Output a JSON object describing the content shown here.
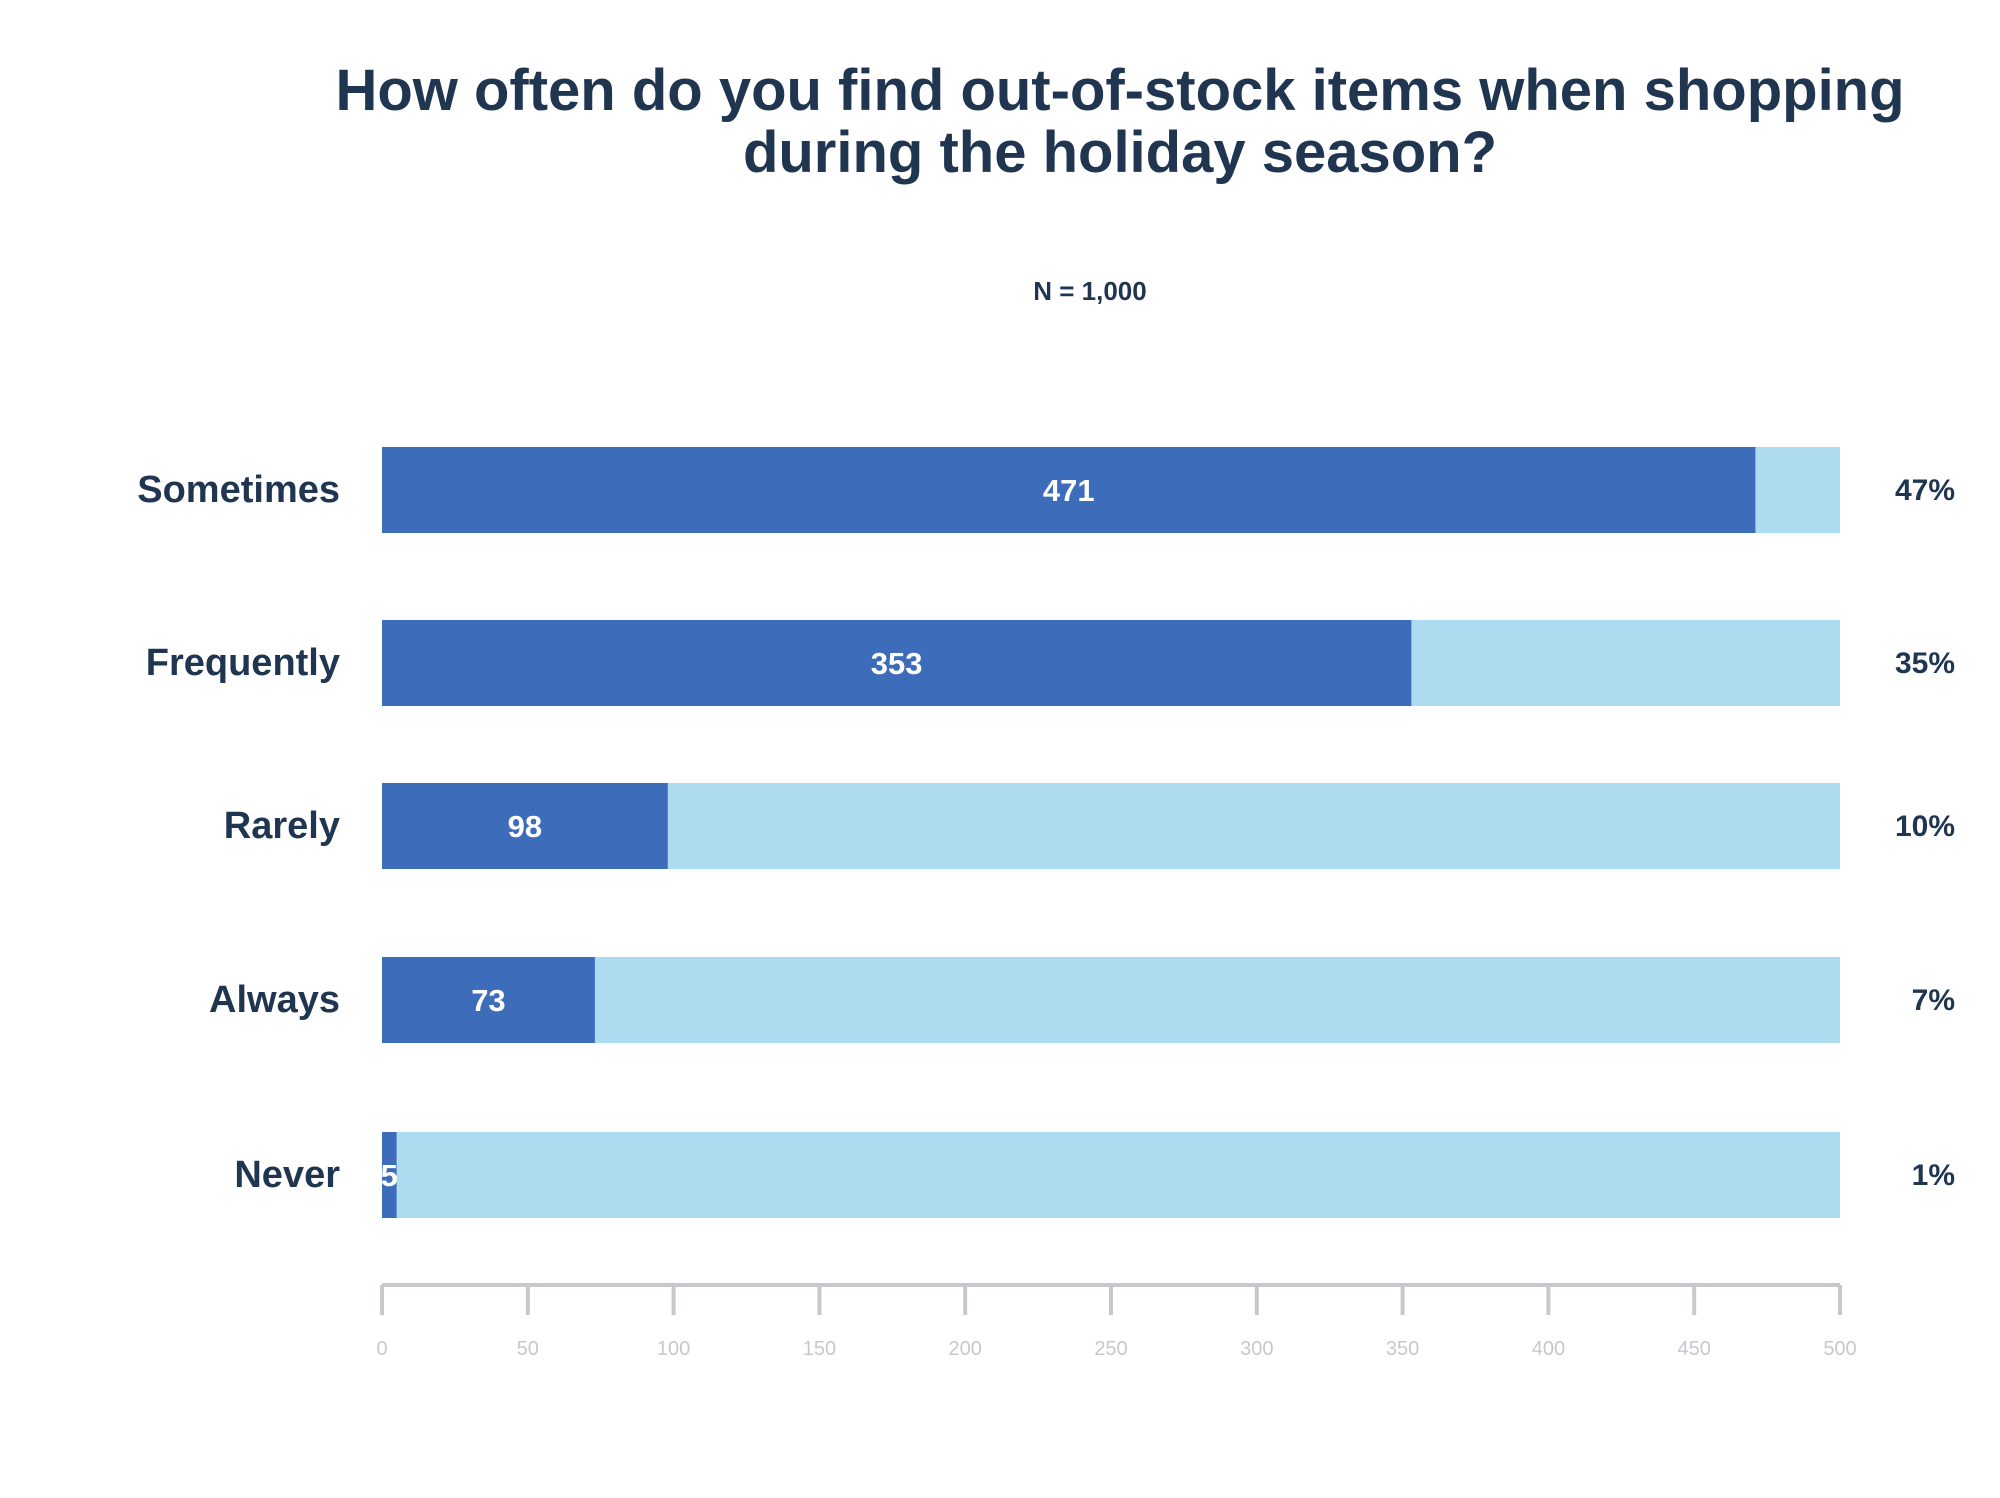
{
  "title_line_1": "How often do you find out-of-stock items when shopping",
  "title_line_2": "during the holiday season?",
  "subtitle": "N = 1,000",
  "colors": {
    "value_bar": "#3d6cba",
    "background_bar": "#addcf0",
    "text_dark": "#1f3550",
    "axis": "#c5c9ce",
    "tick_label": "#c5c9ce",
    "data_label": "#ffffff"
  },
  "chart_data": {
    "type": "bar",
    "orientation": "horizontal",
    "title": "How often do you find out-of-stock items when shopping during the holiday season?",
    "subtitle": "N = 1,000",
    "categories": [
      "Sometimes",
      "Frequently",
      "Rarely",
      "Always",
      "Never"
    ],
    "values": [
      471,
      353,
      98,
      73,
      5
    ],
    "percent_labels": [
      "47%",
      "35%",
      "10%",
      "7%",
      "1%"
    ],
    "value_labels": [
      "471",
      "353",
      "98",
      "73",
      "5"
    ],
    "xlim": [
      0,
      500
    ],
    "x_ticks": [
      0,
      50,
      100,
      150,
      200,
      250,
      300,
      350,
      400,
      450,
      500
    ],
    "x_tick_labels": [
      "0",
      "50",
      "100",
      "150",
      "200",
      "250",
      "300",
      "350",
      "400",
      "450",
      "500"
    ],
    "background_bar_max": 500,
    "grid": false,
    "legend": "none"
  }
}
